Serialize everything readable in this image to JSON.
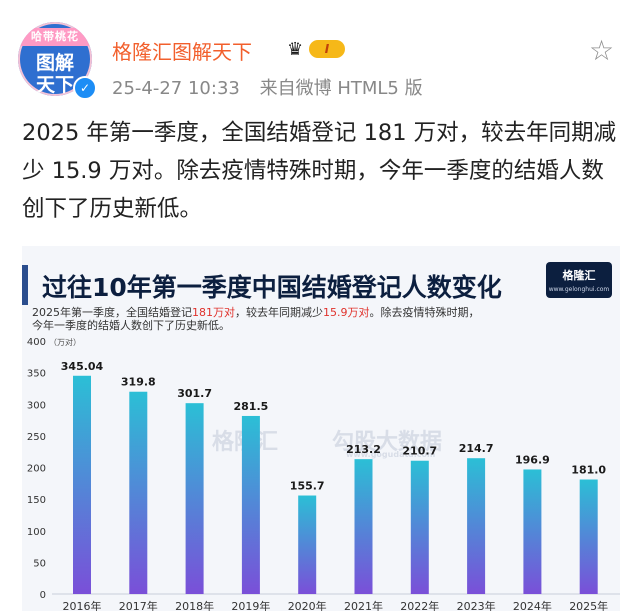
{
  "header": {
    "avatar_ribbon": "哈带桃花",
    "avatar_line1": "图解",
    "avatar_line2": "天下",
    "name": "格隆汇图解天下",
    "vip_level": "I",
    "timestamp": "25-4-27 10:33",
    "source": "来自微博 HTML5 版"
  },
  "post": {
    "text": "2025 年第一季度，全国结婚登记 181 万对，较去年同期减少 15.9 万对。除去疫情特殊时期，今年一季度的结婚人数创下了历史新低。"
  },
  "card": {
    "title": "过往10年第一季度中国结婚登记人数变化",
    "logo_text": "格隆汇",
    "logo_url": "www.gelonghui.com",
    "desc_part1": "2025年第一季度，全国结婚登记",
    "desc_highlight1": "181万对",
    "desc_part2": "，较去年同期减少",
    "desc_highlight2": "15.9万对",
    "desc_part3": "。除去疫情特殊时期，",
    "desc_line2": "今年一季度的结婚人数创下了历史新低。",
    "watermark_left": "格隆汇",
    "watermark_right": "勾股大数据",
    "watermark_url": "www.gogudata.com"
  },
  "chart_data": {
    "type": "bar",
    "categories": [
      "2016年",
      "2017年",
      "2018年",
      "2019年",
      "2020年",
      "2021年",
      "2022年",
      "2023年",
      "2024年",
      "2025年"
    ],
    "values": [
      345.04,
      319.8,
      301.7,
      281.5,
      155.7,
      213.2,
      210.7,
      214.7,
      196.9,
      181.0
    ],
    "value_labels": [
      "345.04",
      "319.8",
      "301.7",
      "281.5",
      "155.7",
      "213.2",
      "210.7",
      "214.7",
      "196.9",
      "181.0"
    ],
    "title": "过往10年第一季度中国结婚登记人数变化",
    "ylabel": "（万对）",
    "ylim": [
      0,
      400
    ],
    "yticks": [
      0,
      50,
      100,
      150,
      200,
      250,
      300,
      350,
      400
    ],
    "grid": false,
    "colors": {
      "bar_top": "#2bbfd6",
      "bar_bottom": "#7a4fd8"
    }
  },
  "colors": {
    "name": "#f25f2c",
    "highlight": "#e0322c",
    "card_bg": "#f4f6fa",
    "title": "#0c1f3f"
  },
  "icons": {
    "favorite": "star-outline-icon",
    "verified": "verified-badge-icon",
    "vip": "crown-icon"
  }
}
